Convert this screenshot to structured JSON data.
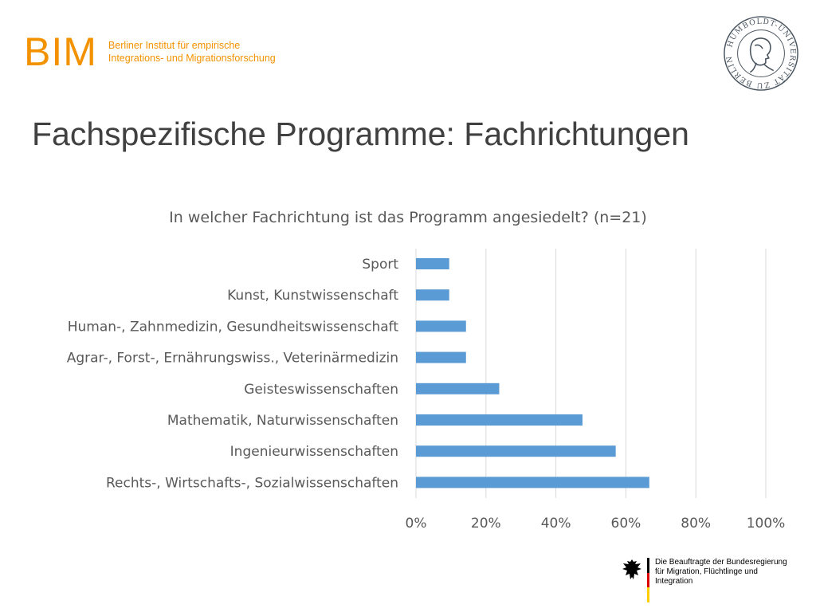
{
  "header": {
    "logo_mark": "BIM",
    "logo_line1": "Berliner Institut für empirische",
    "logo_line2": "Integrations- und Migrationsforschung",
    "seal_text": "HUMBOLDT-UNIVERSITÄT ZU BERLIN"
  },
  "slide": {
    "title": "Fachspezifische Programme: Fachrichtungen"
  },
  "colors": {
    "accent": "#f39200",
    "bar": "#5b9bd5",
    "grid": "#d9d9d9",
    "text": "#595959",
    "title": "#404040"
  },
  "chart_data": {
    "type": "bar",
    "orientation": "horizontal",
    "title": "In welcher Fachrichtung ist das Programm angesiedelt? (n=21)",
    "categories": [
      "Sport",
      "Kunst, Kunstwissenschaft",
      "Human-, Zahnmedizin, Gesundheitswissenschaft",
      "Agrar-, Forst-, Ernährungswiss., Veterinärmedizin",
      "Geisteswissenschaften",
      "Mathematik, Naturwissenschaften",
      "Ingenieurwissenschaften",
      "Rechts-, Wirtschafts-, Sozialwissenschaften"
    ],
    "values": [
      9.5,
      9.5,
      14.3,
      14.3,
      23.8,
      47.6,
      57.1,
      66.7
    ],
    "unit": "%",
    "xlim": [
      0,
      100
    ],
    "ticks": [
      "0%",
      "20%",
      "40%",
      "60%",
      "80%",
      "100%"
    ],
    "grid": true,
    "legend": "none"
  },
  "footer": {
    "line1": "Die Beauftragte der Bundesregierung",
    "line2": "für Migration, Flüchtlinge und",
    "line3": "Integration"
  }
}
